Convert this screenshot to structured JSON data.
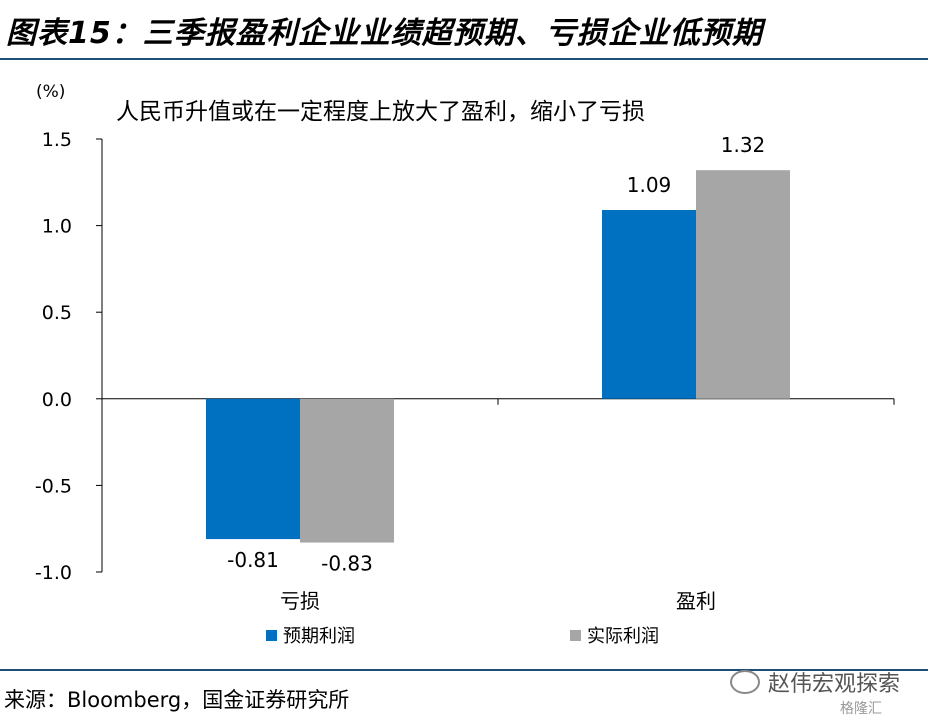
{
  "header": {
    "title": "图表15：三季报盈利企业业绩超预期、亏损企业低预期"
  },
  "chart_data": {
    "type": "bar",
    "unit_label": "(%)",
    "subtitle": "人民币升值或在一定程度上放大了盈利，缩小了亏损",
    "categories": [
      "亏损",
      "盈利"
    ],
    "series": [
      {
        "name": "预期利润",
        "values": [
          -0.81,
          1.09
        ],
        "labels": [
          "-0.81",
          "1.09"
        ]
      },
      {
        "name": "实际利润",
        "values": [
          -0.83,
          1.32
        ],
        "labels": [
          "-0.83",
          "1.32"
        ]
      }
    ],
    "colors": [
      "#0070c0",
      "#a6a6a6"
    ],
    "ylim": [
      -1.0,
      1.5
    ],
    "yticks": [
      "1.5",
      "1.0",
      "0.5",
      "0.0",
      "-0.5",
      "-1.0"
    ],
    "ytick_values": [
      1.5,
      1.0,
      0.5,
      0.0,
      -0.5,
      -1.0
    ],
    "grid": false,
    "legend_position": "bottom"
  },
  "footer": {
    "source": "来源：Bloomberg，国金证券研究所",
    "watermark": "赵伟宏观探索",
    "watermark2": "格隆汇"
  }
}
